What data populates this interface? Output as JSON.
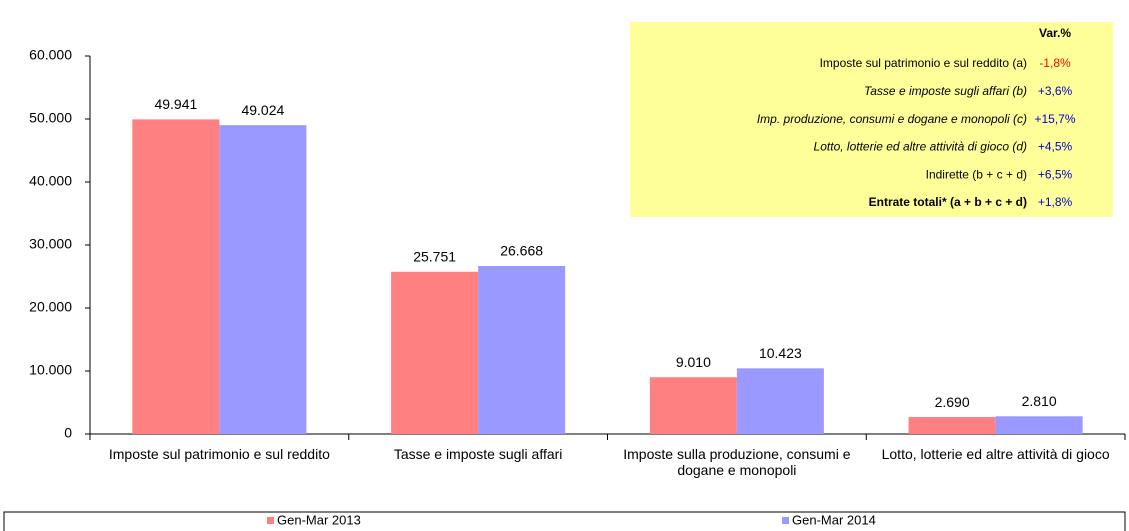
{
  "chart_data": {
    "type": "bar",
    "categories": [
      "Imposte sul patrimonio e sul reddito",
      "Tasse e imposte sugli affari",
      "Imposte sulla produzione, consumi e dogane e monopoli",
      "Lotto, lotterie ed altre attività di gioco"
    ],
    "series": [
      {
        "name": "Gen-Mar 2013",
        "color": "#ff8080",
        "values": [
          49941,
          25751,
          9010,
          2690
        ],
        "value_labels": [
          "49.941",
          "25.751",
          "9.010",
          "2.690"
        ]
      },
      {
        "name": "Gen-Mar 2014",
        "color": "#9999ff",
        "values": [
          49024,
          26668,
          10423,
          2810
        ],
        "value_labels": [
          "49.024",
          "26.668",
          "10.423",
          "2.810"
        ]
      }
    ],
    "ylim": [
      0,
      60000
    ],
    "yticks": [
      {
        "value": 0,
        "label": "0"
      },
      {
        "value": 10000,
        "label": "10.000"
      },
      {
        "value": 20000,
        "label": "20.000"
      },
      {
        "value": 30000,
        "label": "30.000"
      },
      {
        "value": 40000,
        "label": "40.000"
      },
      {
        "value": 50000,
        "label": "50.000"
      },
      {
        "value": 60000,
        "label": "60.000"
      }
    ],
    "legend": "bottom",
    "annotation_table": {
      "header": "Var.%",
      "rows": [
        {
          "label": "Imposte sul patrimonio e sul reddito (a)",
          "var": "-1,8%",
          "color": "#ff0000",
          "style": "normal"
        },
        {
          "label": "Tasse e imposte sugli affari (b)",
          "var": "+3,6%",
          "color": "#0000cc",
          "style": "italic"
        },
        {
          "label": "Imp. produzione, consumi e dogane e monopoli (c)",
          "var": "+15,7%",
          "color": "#0000cc",
          "style": "italic"
        },
        {
          "label": "Lotto, lotterie ed altre attività di gioco (d)",
          "var": "+4,5%",
          "color": "#0000cc",
          "style": "italic"
        },
        {
          "label": "Indirette (b + c + d)",
          "var": "+6,5%",
          "color": "#0000cc",
          "style": "normal"
        },
        {
          "label": "Entrate totali* (a + b + c + d)",
          "var": "+1,8%",
          "color": "#0000cc",
          "style": "bold"
        }
      ]
    }
  }
}
